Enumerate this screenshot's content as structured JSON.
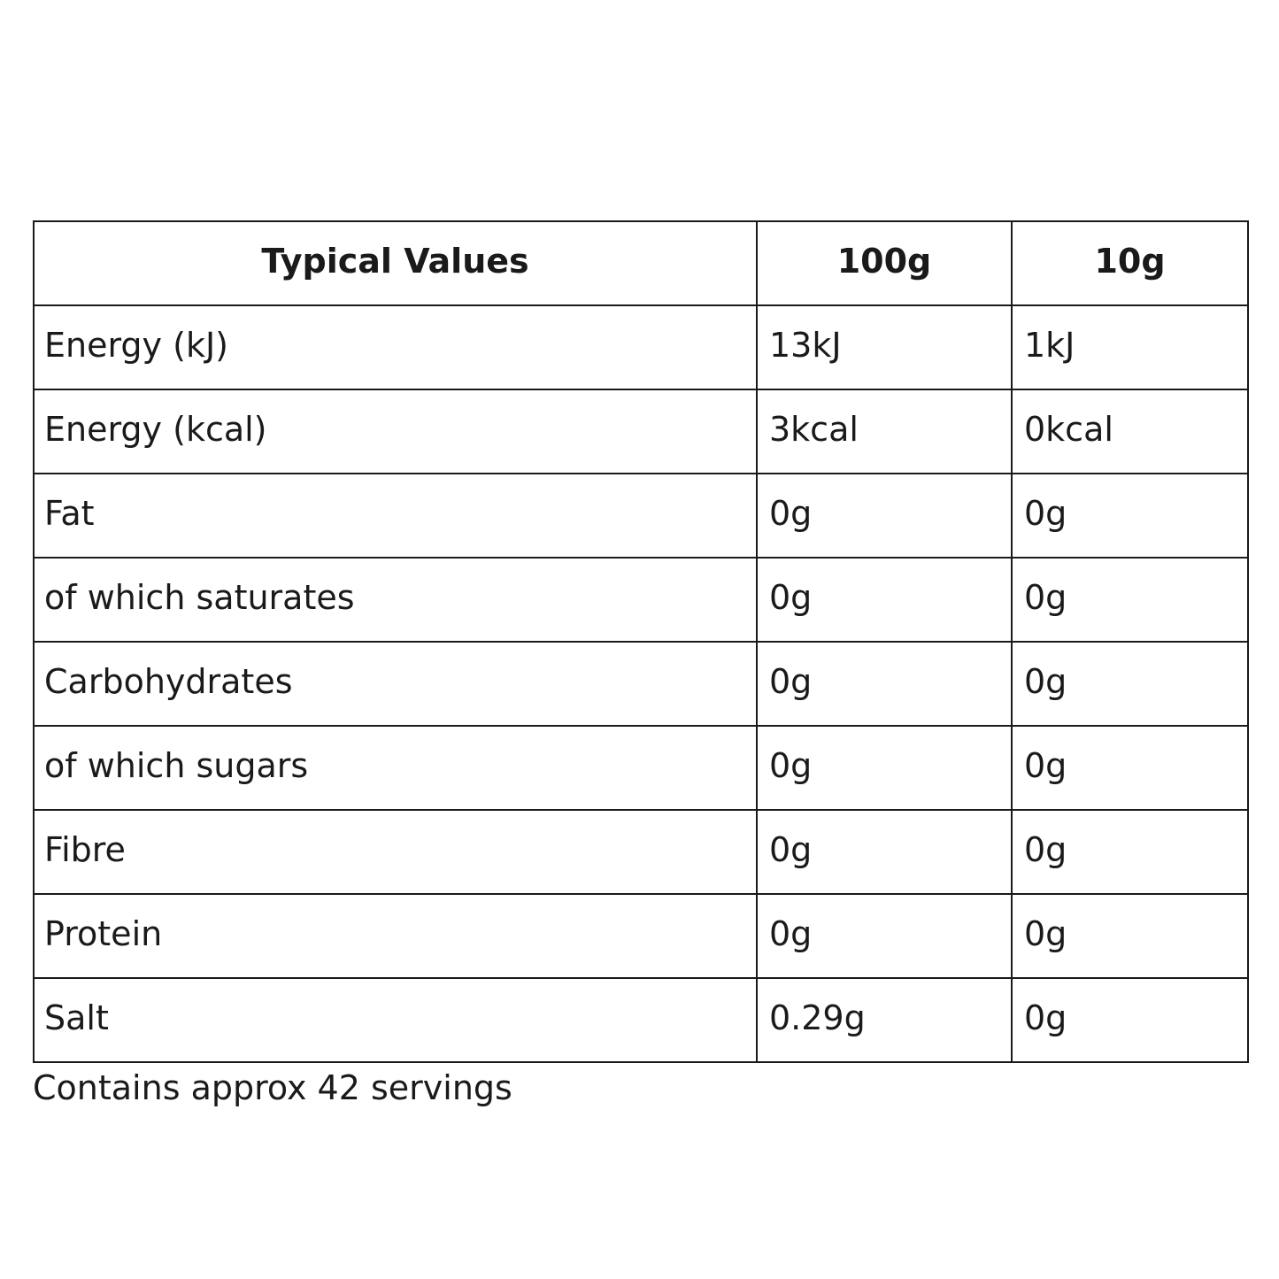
{
  "table": {
    "header": [
      "Typical Values",
      "100g",
      "10g"
    ],
    "rows": [
      [
        "Energy (kJ)",
        "13kJ",
        "1kJ"
      ],
      [
        "Energy (kcal)",
        "3kcal",
        "0kcal"
      ],
      [
        "Fat",
        "0g",
        "0g"
      ],
      [
        "of which saturates",
        "0g",
        "0g"
      ],
      [
        "Carbohydrates",
        "0g",
        "0g"
      ],
      [
        "of which sugars",
        "0g",
        "0g"
      ],
      [
        "Fibre",
        "0g",
        "0g"
      ],
      [
        "Protein",
        "0g",
        "0g"
      ],
      [
        "Salt",
        "0.29g",
        "0g"
      ]
    ]
  },
  "footnote": "Contains approx 42 servings"
}
